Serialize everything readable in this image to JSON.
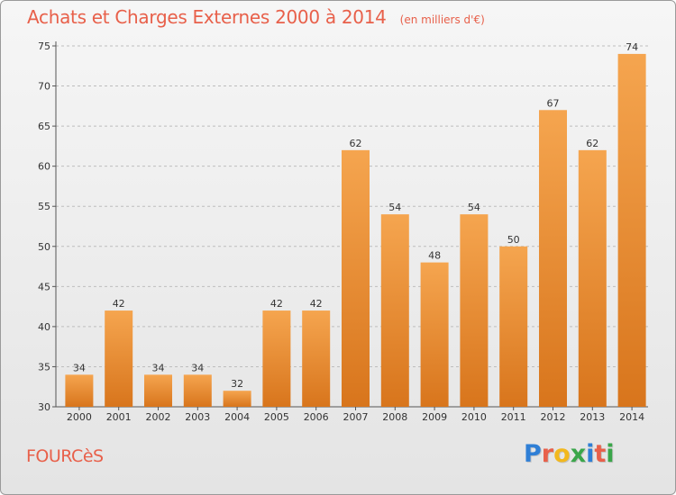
{
  "header": {
    "title": "Achats et Charges Externes 2000 à 2014",
    "subtitle": "(en milliers d'€)"
  },
  "footer": {
    "place_name": "FOURCèS",
    "brand": "Proxiti"
  },
  "colors": {
    "title": "#e8604a",
    "bar_top": "#f5a54f",
    "bar_bottom": "#d8751c",
    "grid": "#bdbdbd"
  },
  "chart_data": {
    "type": "bar",
    "title": "Achats et Charges Externes 2000 à 2014",
    "subtitle": "(en milliers d'€)",
    "categories": [
      "2000",
      "2001",
      "2002",
      "2003",
      "2004",
      "2005",
      "2006",
      "2007",
      "2008",
      "2009",
      "2010",
      "2011",
      "2012",
      "2013",
      "2014"
    ],
    "values": [
      34,
      42,
      34,
      34,
      32,
      42,
      42,
      62,
      54,
      48,
      54,
      50,
      67,
      62,
      74
    ],
    "ylim": [
      30,
      75
    ],
    "yticks": [
      30,
      35,
      40,
      45,
      50,
      55,
      60,
      65,
      70,
      75
    ],
    "grid": true,
    "xlabel": "",
    "ylabel": ""
  }
}
